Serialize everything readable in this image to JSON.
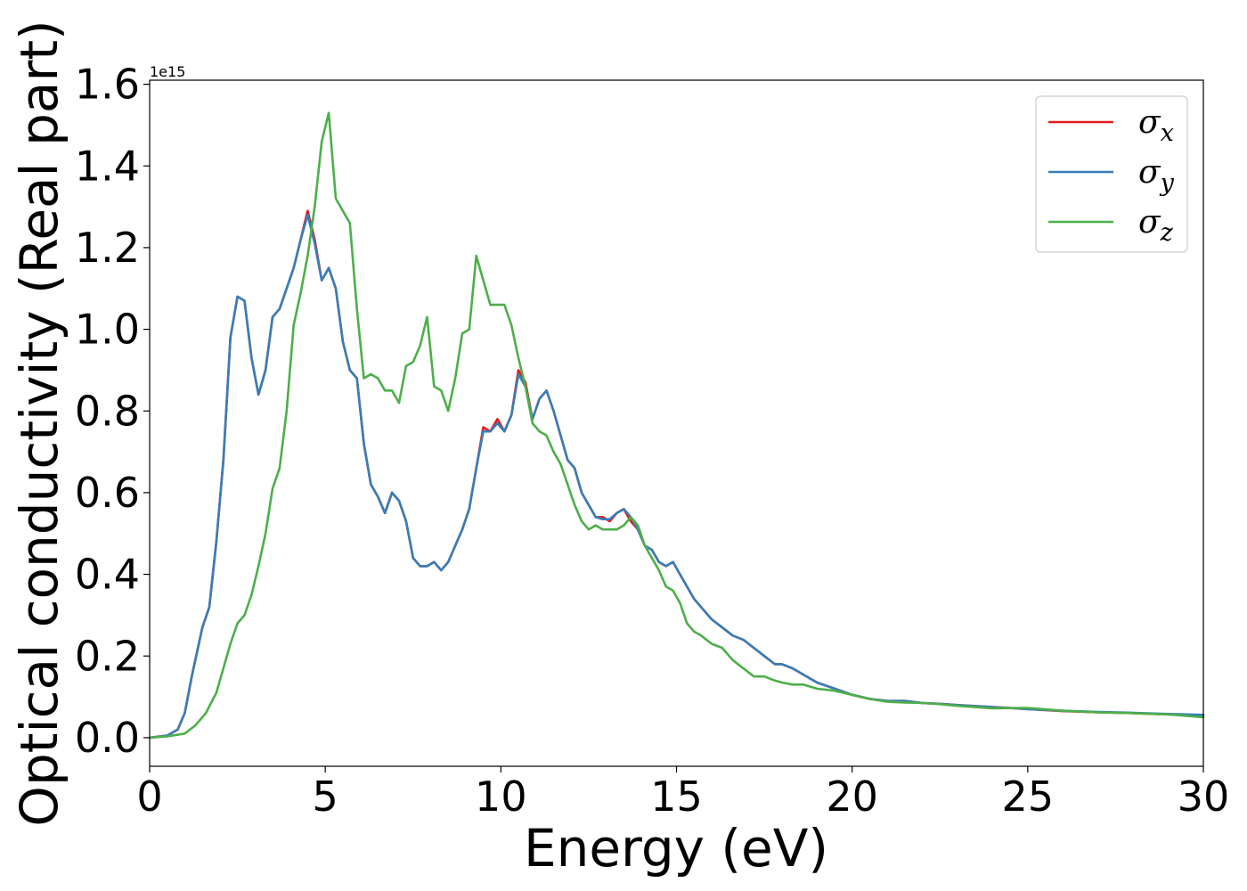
{
  "chart_data": {
    "type": "line",
    "xlabel": "Energy (eV)",
    "ylabel": "Optical conductivity (Real part)",
    "y_offset_label": "1e15",
    "xlim": [
      0,
      30
    ],
    "ylim": [
      -0.07,
      1.61
    ],
    "x_ticks": [
      0,
      5,
      10,
      15,
      20,
      25,
      30
    ],
    "y_ticks": [
      0.0,
      0.2,
      0.4,
      0.6,
      0.8,
      1.0,
      1.2,
      1.4,
      1.6
    ],
    "x_tick_labels": [
      "0",
      "5",
      "10",
      "15",
      "20",
      "25",
      "30"
    ],
    "y_tick_labels": [
      "0.0",
      "0.2",
      "0.4",
      "0.6",
      "0.8",
      "1.0",
      "1.2",
      "1.4",
      "1.6"
    ],
    "grid": false,
    "legend_position": "top-right",
    "series": [
      {
        "name": "σx",
        "legend_main": "σ",
        "legend_sub": "x",
        "color": "#e41a1c",
        "x": [
          0,
          0.5,
          0.8,
          1.0,
          1.2,
          1.5,
          1.7,
          1.9,
          2.1,
          2.3,
          2.5,
          2.7,
          2.9,
          3.1,
          3.3,
          3.5,
          3.7,
          3.9,
          4.1,
          4.3,
          4.5,
          4.7,
          4.9,
          5.1,
          5.3,
          5.5,
          5.7,
          5.9,
          6.1,
          6.3,
          6.5,
          6.7,
          6.9,
          7.1,
          7.3,
          7.5,
          7.7,
          7.9,
          8.1,
          8.3,
          8.5,
          8.7,
          8.9,
          9.1,
          9.3,
          9.5,
          9.7,
          9.9,
          10.1,
          10.3,
          10.5,
          10.7,
          10.9,
          11.1,
          11.3,
          11.5,
          11.7,
          11.9,
          12.1,
          12.3,
          12.5,
          12.7,
          12.9,
          13.1,
          13.3,
          13.5,
          13.7,
          13.9,
          14.1,
          14.3,
          14.5,
          14.7,
          14.9,
          15.1,
          15.3,
          15.5,
          15.7,
          16.0,
          16.3,
          16.6,
          16.9,
          17.2,
          17.5,
          17.8,
          18.0,
          18.3,
          18.6,
          19.0,
          19.5,
          20.0,
          20.5,
          21.0,
          21.5,
          22.0,
          22.5,
          23.0,
          24.0,
          25.0,
          26.0,
          27.0,
          28.0,
          29.0,
          30.0
        ],
        "y": [
          0.0,
          0.005,
          0.02,
          0.06,
          0.15,
          0.27,
          0.32,
          0.48,
          0.68,
          0.98,
          1.08,
          1.07,
          0.93,
          0.84,
          0.9,
          1.03,
          1.05,
          1.1,
          1.15,
          1.22,
          1.29,
          1.22,
          1.12,
          1.15,
          1.1,
          0.97,
          0.9,
          0.88,
          0.72,
          0.62,
          0.59,
          0.55,
          0.6,
          0.58,
          0.53,
          0.44,
          0.42,
          0.42,
          0.43,
          0.41,
          0.43,
          0.47,
          0.51,
          0.56,
          0.66,
          0.76,
          0.75,
          0.78,
          0.75,
          0.79,
          0.9,
          0.87,
          0.78,
          0.83,
          0.85,
          0.8,
          0.74,
          0.68,
          0.66,
          0.6,
          0.57,
          0.54,
          0.54,
          0.53,
          0.55,
          0.56,
          0.53,
          0.51,
          0.47,
          0.46,
          0.43,
          0.42,
          0.43,
          0.4,
          0.37,
          0.34,
          0.32,
          0.29,
          0.27,
          0.25,
          0.24,
          0.22,
          0.2,
          0.18,
          0.18,
          0.17,
          0.155,
          0.135,
          0.12,
          0.105,
          0.095,
          0.09,
          0.09,
          0.085,
          0.083,
          0.08,
          0.075,
          0.07,
          0.065,
          0.062,
          0.06,
          0.057,
          0.055
        ]
      },
      {
        "name": "σy",
        "legend_main": "σ",
        "legend_sub": "y",
        "color": "#377eb8",
        "x": [
          0,
          0.5,
          0.8,
          1.0,
          1.2,
          1.5,
          1.7,
          1.9,
          2.1,
          2.3,
          2.5,
          2.7,
          2.9,
          3.1,
          3.3,
          3.5,
          3.7,
          3.9,
          4.1,
          4.3,
          4.5,
          4.7,
          4.9,
          5.1,
          5.3,
          5.5,
          5.7,
          5.9,
          6.1,
          6.3,
          6.5,
          6.7,
          6.9,
          7.1,
          7.3,
          7.5,
          7.7,
          7.9,
          8.1,
          8.3,
          8.5,
          8.7,
          8.9,
          9.1,
          9.3,
          9.5,
          9.7,
          9.9,
          10.1,
          10.3,
          10.5,
          10.7,
          10.9,
          11.1,
          11.3,
          11.5,
          11.7,
          11.9,
          12.1,
          12.3,
          12.5,
          12.7,
          12.9,
          13.1,
          13.3,
          13.5,
          13.7,
          13.9,
          14.1,
          14.3,
          14.5,
          14.7,
          14.9,
          15.1,
          15.3,
          15.5,
          15.7,
          16.0,
          16.3,
          16.6,
          16.9,
          17.2,
          17.5,
          17.8,
          18.0,
          18.3,
          18.6,
          19.0,
          19.5,
          20.0,
          20.5,
          21.0,
          21.5,
          22.0,
          22.5,
          23.0,
          24.0,
          25.0,
          26.0,
          27.0,
          28.0,
          29.0,
          30.0
        ],
        "y": [
          0.0,
          0.005,
          0.02,
          0.06,
          0.15,
          0.27,
          0.32,
          0.48,
          0.68,
          0.98,
          1.08,
          1.07,
          0.93,
          0.84,
          0.9,
          1.03,
          1.05,
          1.1,
          1.15,
          1.22,
          1.28,
          1.21,
          1.12,
          1.15,
          1.1,
          0.97,
          0.9,
          0.88,
          0.72,
          0.62,
          0.59,
          0.55,
          0.6,
          0.58,
          0.53,
          0.44,
          0.42,
          0.42,
          0.43,
          0.41,
          0.43,
          0.47,
          0.51,
          0.56,
          0.66,
          0.75,
          0.75,
          0.77,
          0.75,
          0.79,
          0.89,
          0.86,
          0.78,
          0.83,
          0.85,
          0.8,
          0.74,
          0.68,
          0.66,
          0.6,
          0.57,
          0.54,
          0.535,
          0.535,
          0.55,
          0.56,
          0.54,
          0.51,
          0.47,
          0.46,
          0.43,
          0.42,
          0.43,
          0.4,
          0.37,
          0.34,
          0.32,
          0.29,
          0.27,
          0.25,
          0.24,
          0.22,
          0.2,
          0.18,
          0.18,
          0.17,
          0.155,
          0.135,
          0.12,
          0.105,
          0.095,
          0.09,
          0.09,
          0.085,
          0.083,
          0.08,
          0.075,
          0.07,
          0.066,
          0.063,
          0.061,
          0.058,
          0.056
        ]
      },
      {
        "name": "σz",
        "legend_main": "σ",
        "legend_sub": "z",
        "color": "#4daf4a",
        "x": [
          0,
          0.5,
          1.0,
          1.3,
          1.6,
          1.9,
          2.1,
          2.3,
          2.5,
          2.7,
          2.9,
          3.1,
          3.3,
          3.5,
          3.7,
          3.9,
          4.1,
          4.3,
          4.5,
          4.7,
          4.9,
          5.1,
          5.3,
          5.5,
          5.7,
          5.9,
          6.1,
          6.3,
          6.5,
          6.7,
          6.9,
          7.1,
          7.3,
          7.5,
          7.7,
          7.9,
          8.1,
          8.3,
          8.5,
          8.7,
          8.9,
          9.1,
          9.3,
          9.5,
          9.7,
          9.9,
          10.1,
          10.3,
          10.5,
          10.7,
          10.9,
          11.1,
          11.3,
          11.5,
          11.7,
          11.9,
          12.1,
          12.3,
          12.5,
          12.7,
          12.9,
          13.1,
          13.3,
          13.5,
          13.7,
          13.9,
          14.1,
          14.3,
          14.5,
          14.7,
          14.9,
          15.1,
          15.3,
          15.5,
          15.7,
          16.0,
          16.3,
          16.6,
          16.9,
          17.2,
          17.5,
          17.8,
          18.0,
          18.3,
          18.6,
          19.0,
          19.5,
          20.0,
          20.5,
          21.0,
          21.5,
          22.0,
          22.5,
          23.0,
          24.0,
          25.0,
          26.0,
          27.0,
          28.0,
          29.0,
          30.0
        ],
        "y": [
          0.0,
          0.003,
          0.01,
          0.03,
          0.06,
          0.11,
          0.17,
          0.23,
          0.28,
          0.3,
          0.35,
          0.42,
          0.5,
          0.61,
          0.66,
          0.8,
          1.01,
          1.09,
          1.18,
          1.3,
          1.46,
          1.53,
          1.32,
          1.29,
          1.26,
          1.05,
          0.88,
          0.89,
          0.88,
          0.85,
          0.85,
          0.82,
          0.91,
          0.92,
          0.96,
          1.03,
          0.86,
          0.85,
          0.8,
          0.88,
          0.99,
          1.0,
          1.18,
          1.12,
          1.06,
          1.06,
          1.06,
          1.01,
          0.93,
          0.86,
          0.77,
          0.75,
          0.74,
          0.7,
          0.67,
          0.62,
          0.57,
          0.53,
          0.51,
          0.52,
          0.51,
          0.51,
          0.51,
          0.52,
          0.54,
          0.52,
          0.47,
          0.44,
          0.41,
          0.37,
          0.36,
          0.33,
          0.28,
          0.26,
          0.25,
          0.23,
          0.22,
          0.19,
          0.17,
          0.15,
          0.15,
          0.14,
          0.135,
          0.13,
          0.13,
          0.12,
          0.115,
          0.105,
          0.095,
          0.088,
          0.086,
          0.085,
          0.082,
          0.078,
          0.072,
          0.073,
          0.066,
          0.062,
          0.06,
          0.057,
          0.05
        ]
      }
    ]
  }
}
